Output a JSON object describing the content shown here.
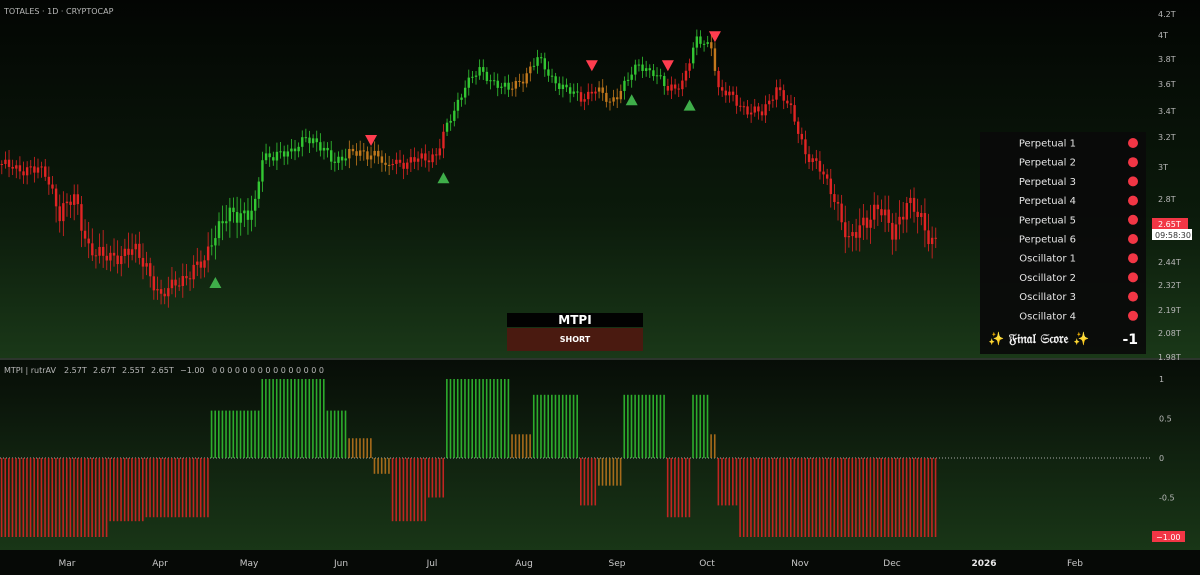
{
  "header": {
    "symbol_info": "TOTALES · 1D · CRYPTOCAP",
    "indicator_name": "MTPI | rutrAV",
    "indicator_values": [
      "2.57T",
      "2.67T",
      "2.55T",
      "2.65T",
      "−1.00"
    ],
    "indicator_zeros": "0 0 0 0 0 0 0 0 0 0 0 0 0 0 0"
  },
  "colors": {
    "bull": "#33c733",
    "bear": "#e02424",
    "neutral": "#c2781d",
    "buy_marker": "#3fae4a",
    "sell_marker": "#ff3d4f",
    "price_tag": "#f23645"
  },
  "price_axis": {
    "labels": [
      "4.2T",
      "4T",
      "3.8T",
      "3.6T",
      "3.4T",
      "3.2T",
      "3T",
      "2.8T",
      "2.44T",
      "2.32T",
      "2.19T",
      "2.08T",
      "1.98T"
    ]
  },
  "price_tag": {
    "value": "2.65T",
    "countdown": "09:58:30"
  },
  "osc_axis": {
    "labels": [
      "1",
      "0.5",
      "0",
      "-0.5",
      "-1"
    ],
    "last_value": "−1.00"
  },
  "time_axis": {
    "months": [
      "Mar",
      "Apr",
      "May",
      "Jun",
      "Jul",
      "Aug",
      "Sep",
      "Oct",
      "Nov",
      "Dec",
      "2026",
      "Feb"
    ]
  },
  "mtpi": {
    "title": "MTPI",
    "state": "SHORT"
  },
  "score_panel": {
    "items": [
      {
        "label": "Perpetual 1",
        "status": "bear"
      },
      {
        "label": "Perpetual 2",
        "status": "bear"
      },
      {
        "label": "Perpetual 3",
        "status": "bear"
      },
      {
        "label": "Perpetual 4",
        "status": "bear"
      },
      {
        "label": "Perpetual 5",
        "status": "bear"
      },
      {
        "label": "Perpetual 6",
        "status": "bear"
      },
      {
        "label": "Oscillator 1",
        "status": "bear"
      },
      {
        "label": "Oscillator 2",
        "status": "bear"
      },
      {
        "label": "Oscillator 3",
        "status": "bear"
      },
      {
        "label": "Oscillator 4",
        "status": "bear"
      }
    ],
    "final_label": "✨ 𝔉𝔦𝔫𝔞𝔩 𝔖𝔠𝔬𝔯𝔢 ✨",
    "final_value": "-1"
  },
  "chart_data": [
    {
      "type": "line",
      "name": "price",
      "y_unit": "T",
      "ylim": [
        1.98,
        4.2
      ],
      "x": [
        "Mar",
        "Apr",
        "May",
        "Jun",
        "Jul",
        "Aug",
        "Sep",
        "Oct",
        "Nov",
        "Dec"
      ],
      "anchors": [
        [
          0,
          3.02
        ],
        [
          4,
          2.98
        ],
        [
          8,
          3.0
        ],
        [
          12,
          2.95
        ],
        [
          16,
          2.75
        ],
        [
          20,
          2.8
        ],
        [
          24,
          2.62
        ],
        [
          28,
          2.56
        ],
        [
          32,
          2.58
        ],
        [
          36,
          2.6
        ],
        [
          40,
          2.53
        ],
        [
          44,
          2.35
        ],
        [
          48,
          2.45
        ],
        [
          52,
          2.48
        ],
        [
          56,
          2.55
        ],
        [
          58,
          2.66
        ],
        [
          62,
          2.72
        ],
        [
          66,
          2.75
        ],
        [
          70,
          2.76
        ],
        [
          72,
          3.05
        ],
        [
          76,
          3.1
        ],
        [
          80,
          3.08
        ],
        [
          84,
          3.22
        ],
        [
          88,
          3.12
        ],
        [
          92,
          3.05
        ],
        [
          96,
          3.08
        ],
        [
          100,
          3.1
        ],
        [
          104,
          3.08
        ],
        [
          106,
          2.97
        ],
        [
          108,
          3.05
        ],
        [
          112,
          3.02
        ],
        [
          116,
          3.06
        ],
        [
          120,
          3.08
        ],
        [
          124,
          3.34
        ],
        [
          128,
          3.6
        ],
        [
          132,
          3.7
        ],
        [
          136,
          3.62
        ],
        [
          140,
          3.55
        ],
        [
          144,
          3.65
        ],
        [
          148,
          3.8
        ],
        [
          152,
          3.65
        ],
        [
          156,
          3.55
        ],
        [
          160,
          3.5
        ],
        [
          164,
          3.56
        ],
        [
          168,
          3.46
        ],
        [
          172,
          3.6
        ],
        [
          176,
          3.75
        ],
        [
          180,
          3.7
        ],
        [
          184,
          3.55
        ],
        [
          188,
          3.62
        ],
        [
          192,
          3.95
        ],
        [
          196,
          3.92
        ],
        [
          198,
          3.55
        ],
        [
          202,
          3.5
        ],
        [
          206,
          3.4
        ],
        [
          210,
          3.38
        ],
        [
          214,
          3.58
        ],
        [
          218,
          3.4
        ],
        [
          222,
          3.1
        ],
        [
          226,
          2.98
        ],
        [
          230,
          2.82
        ],
        [
          234,
          2.62
        ],
        [
          238,
          2.72
        ],
        [
          242,
          2.76
        ],
        [
          246,
          2.68
        ],
        [
          250,
          2.78
        ],
        [
          254,
          2.72
        ],
        [
          258,
          2.62
        ]
      ],
      "signals": {
        "buy": [
          [
            59,
            2.44
          ],
          [
            122,
            2.93
          ],
          [
            174,
            3.48
          ],
          [
            190,
            3.44
          ]
        ],
        "sell": [
          [
            102,
            3.18
          ],
          [
            163,
            3.75
          ],
          [
            184,
            3.75
          ],
          [
            197,
            3.99
          ]
        ]
      },
      "current": 2.65
    },
    {
      "type": "bar",
      "name": "MTPI",
      "ylim": [
        -1,
        1
      ],
      "segments": [
        [
          0,
          30,
          -1
        ],
        [
          30,
          40,
          -0.8
        ],
        [
          40,
          58,
          -0.75
        ],
        [
          58,
          72,
          0.6
        ],
        [
          72,
          90,
          1
        ],
        [
          90,
          96,
          0.6
        ],
        [
          96,
          103,
          0.25
        ],
        [
          103,
          108,
          -0.2
        ],
        [
          108,
          118,
          -0.8
        ],
        [
          118,
          123,
          -0.5
        ],
        [
          123,
          141,
          1
        ],
        [
          141,
          147,
          0.3
        ],
        [
          147,
          160,
          0.8
        ],
        [
          160,
          165,
          -0.6
        ],
        [
          165,
          172,
          -0.35
        ],
        [
          172,
          184,
          0.8
        ],
        [
          184,
          191,
          -0.75
        ],
        [
          191,
          196,
          0.8
        ],
        [
          196,
          198,
          0.3
        ],
        [
          198,
          204,
          -0.6
        ],
        [
          204,
          262,
          -1
        ]
      ],
      "current": -1
    }
  ]
}
